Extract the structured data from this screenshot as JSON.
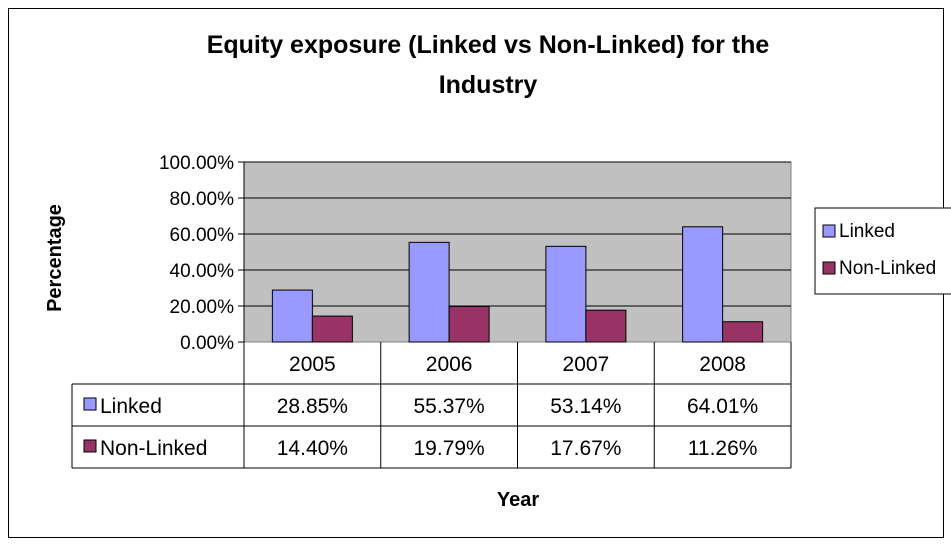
{
  "chart_data": {
    "type": "bar",
    "title_line1": "Equity exposure (Linked vs Non-Linked) for the",
    "title_line2": "Industry",
    "xlabel": "Year",
    "ylabel": "Percentage",
    "categories": [
      "2005",
      "2006",
      "2007",
      "2008"
    ],
    "series": [
      {
        "name": "Linked",
        "values": [
          28.85,
          55.37,
          53.14,
          64.01
        ],
        "labels": [
          "28.85%",
          "55.37%",
          "53.14%",
          "64.01%"
        ],
        "color": "#9999ff"
      },
      {
        "name": "Non-Linked",
        "values": [
          14.4,
          19.79,
          17.67,
          11.26
        ],
        "labels": [
          "14.40%",
          "19.79%",
          "17.67%",
          "11.26%"
        ],
        "color": "#993366"
      }
    ],
    "ylim": [
      0,
      100
    ],
    "yticks": [
      "0.00%",
      "20.00%",
      "40.00%",
      "60.00%",
      "80.00%",
      "100.00%"
    ],
    "plot_background": "#c0c0c0",
    "grid": true,
    "legend_position": "right",
    "data_table": true
  }
}
